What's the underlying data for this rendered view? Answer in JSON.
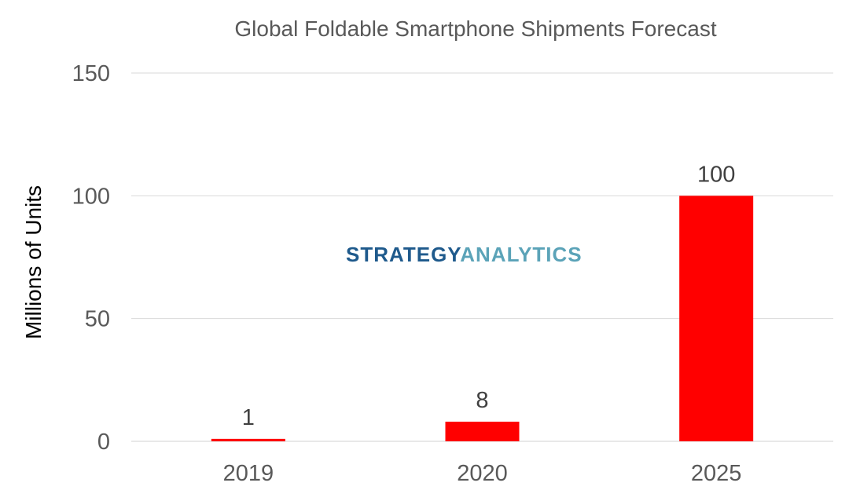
{
  "watermark": {
    "part1": "STRATEGY",
    "part2": "ANALYTICS",
    "color1": "#1f5a8c",
    "color2": "#5ba3b8"
  },
  "chart_data": {
    "type": "bar",
    "title": "Global Foldable Smartphone Shipments Forecast",
    "xlabel": "",
    "ylabel": "Millions of Units",
    "categories": [
      "2019",
      "2020",
      "2025"
    ],
    "values": [
      1,
      8,
      100
    ],
    "data_labels": [
      "1",
      "8",
      "100"
    ],
    "ylim": [
      0,
      150
    ],
    "yticks": [
      0,
      50,
      100,
      150
    ],
    "bar_color": "#ff0000",
    "grid": true,
    "legend": "none"
  }
}
